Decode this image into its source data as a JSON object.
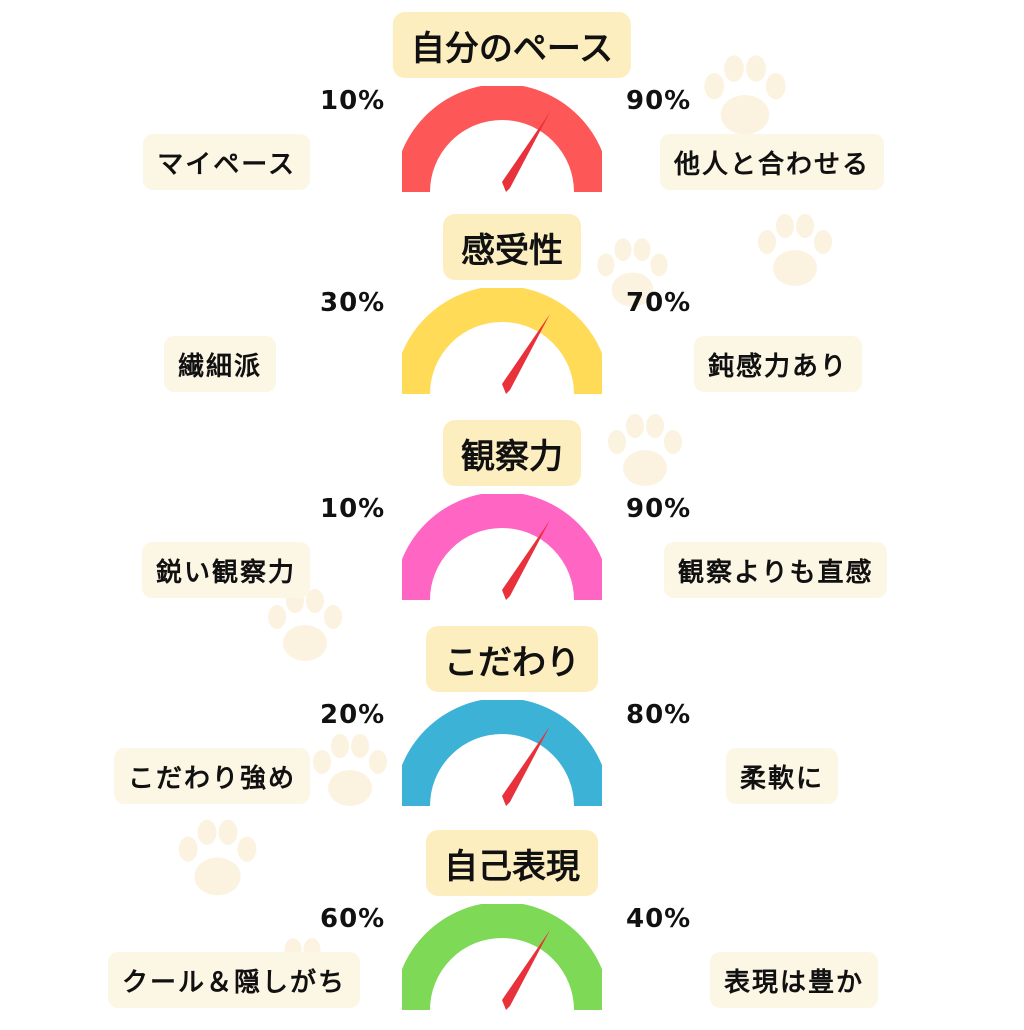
{
  "colors": {
    "needle": "#e8313b",
    "paw": "#fbf3e0",
    "title_bg": "#fdeec0",
    "pill_bg": "#fcf6e5"
  },
  "sections": [
    {
      "title": "自分のペース",
      "left_label": "マイペース",
      "left_percent": "10%",
      "right_label": "他人と合わせる",
      "right_percent": "90%",
      "gauge_color": "#fd5758"
    },
    {
      "title": "感受性",
      "left_label": "繊細派",
      "left_percent": "30%",
      "right_label": "鈍感力あり",
      "right_percent": "70%",
      "gauge_color": "#ffdb58"
    },
    {
      "title": "観察力",
      "left_label": "鋭い観察力",
      "left_percent": "10%",
      "right_label": "観察よりも直感",
      "right_percent": "90%",
      "gauge_color": "#ff66c4"
    },
    {
      "title": "こだわり",
      "left_label": "こだわり強め",
      "left_percent": "20%",
      "right_label": "柔軟に",
      "right_percent": "80%",
      "gauge_color": "#3cb3d6"
    },
    {
      "title": "自己表現",
      "left_label": "クール＆隠しがち",
      "left_percent": "60%",
      "right_label": "表現は豊か",
      "right_percent": "40%",
      "gauge_color": "#7ed957"
    }
  ]
}
